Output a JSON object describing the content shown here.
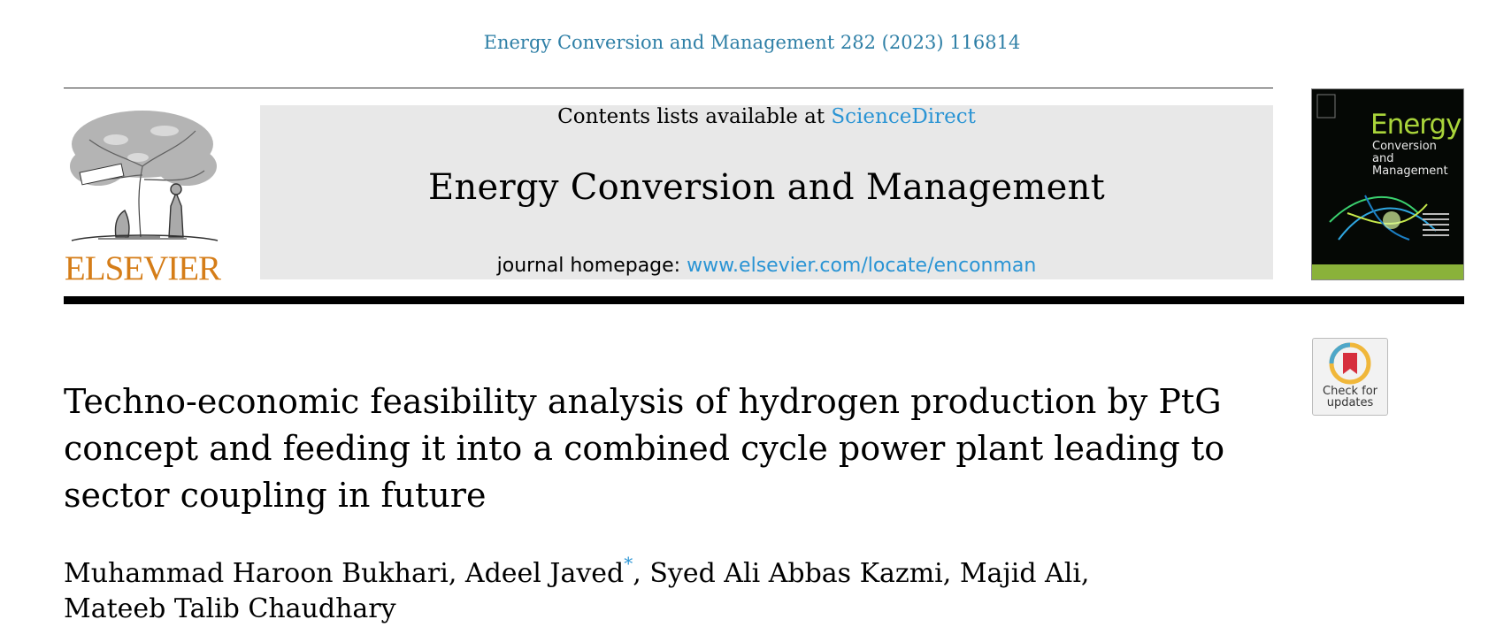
{
  "header": {
    "citation": "Energy Conversion and Management 282 (2023) 116814"
  },
  "publisher": {
    "logo_text": "ELSEVIER",
    "logo_icon": "tree-logo-icon",
    "brand_color": "#d57d18"
  },
  "banner": {
    "contents_prefix": "Contents lists available at ",
    "contents_link": "ScienceDirect",
    "journal_title": "Energy Conversion and Management",
    "homepage_prefix": "journal homepage: ",
    "homepage_link": "www.elsevier.com/locate/enconman",
    "link_color": "#2a94d4"
  },
  "cover": {
    "title_line1": "Energy",
    "title_line2": "Conversion",
    "title_line3": "and Management"
  },
  "badge": {
    "icon": "bookmark-icon",
    "line1": "Check for",
    "line2": "updates"
  },
  "article": {
    "title": "Techno-economic feasibility analysis of hydrogen production by PtG concept and feeding it into a combined cycle power plant leading to sector coupling in future",
    "authors": [
      "Muhammad Haroon Bukhari",
      "Adeel Javed",
      "Syed Ali Abbas Kazmi",
      "Majid Ali",
      "Mateeb Talib Chaudhary"
    ],
    "corresponding_mark": "*"
  }
}
